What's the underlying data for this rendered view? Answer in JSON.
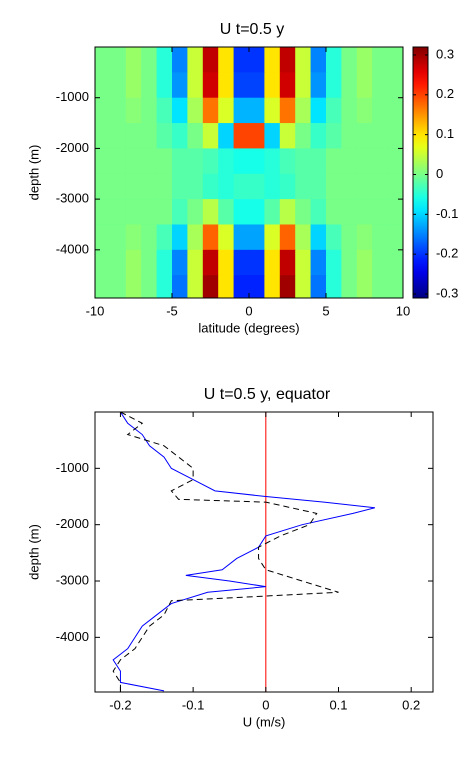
{
  "chart_data": [
    {
      "type": "heatmap",
      "title": "U  t=0.5 y",
      "xlabel": "latitude (degrees)",
      "ylabel": "depth (m)",
      "xlim": [
        -10,
        10
      ],
      "xticks": [
        -10,
        -5,
        0,
        5,
        10
      ],
      "ylim": [
        -4950,
        0
      ],
      "yticks": [
        -1000,
        -2000,
        -3000,
        -4000
      ],
      "clim": [
        -0.31,
        0.32
      ],
      "cticks": [
        0.3,
        0.2,
        0.1,
        0,
        -0.1,
        -0.2,
        -0.3
      ],
      "x": [
        -9.5,
        -8.5,
        -7.5,
        -6.5,
        -5.5,
        -4.5,
        -3.5,
        -2.5,
        -1.5,
        -0.5,
        0.5,
        1.5,
        2.5,
        3.5,
        4.5,
        5.5,
        6.5,
        7.5,
        8.5,
        9.5
      ],
      "y": [
        -250,
        -750,
        -1250,
        -1750,
        -2250,
        -2750,
        -3250,
        -3750,
        -4250,
        -4750
      ],
      "z": [
        [
          0,
          0,
          0.02,
          0,
          -0.05,
          -0.15,
          0.05,
          0.28,
          0.1,
          -0.2,
          -0.2,
          0.1,
          0.28,
          0.05,
          -0.15,
          -0.05,
          0,
          0.02,
          0,
          0
        ],
        [
          0,
          0,
          0.02,
          0,
          -0.05,
          -0.14,
          0.05,
          0.27,
          0.1,
          -0.19,
          -0.19,
          0.1,
          0.27,
          0.05,
          -0.14,
          -0.05,
          0,
          0.02,
          0,
          0
        ],
        [
          0,
          0,
          0.01,
          0,
          -0.03,
          -0.09,
          0.03,
          0.17,
          0.06,
          -0.12,
          -0.12,
          0.06,
          0.17,
          0.03,
          -0.09,
          -0.03,
          0,
          0.01,
          0,
          0
        ],
        [
          0,
          0,
          0,
          0,
          -0.02,
          -0.04,
          0,
          0.05,
          -0.1,
          0.2,
          0.2,
          -0.1,
          0.05,
          0,
          -0.04,
          -0.02,
          0,
          0,
          0,
          0
        ],
        [
          0,
          0,
          0,
          0,
          0,
          -0.02,
          -0.02,
          -0.03,
          -0.05,
          -0.06,
          -0.06,
          -0.05,
          -0.03,
          -0.02,
          -0.02,
          0,
          0,
          0,
          0,
          0
        ],
        [
          0,
          0,
          0,
          0,
          0,
          -0.02,
          -0.02,
          -0.04,
          -0.05,
          -0.04,
          -0.04,
          -0.05,
          -0.04,
          -0.02,
          -0.02,
          0,
          0,
          0,
          0,
          0
        ],
        [
          0,
          0,
          0,
          0,
          0,
          -0.03,
          0,
          0.04,
          -0.02,
          -0.06,
          -0.06,
          -0.02,
          0.04,
          0,
          -0.03,
          0,
          0,
          0,
          0,
          0
        ],
        [
          0,
          0,
          0.01,
          0,
          -0.03,
          -0.1,
          0.03,
          0.18,
          0.06,
          -0.13,
          -0.13,
          0.06,
          0.18,
          0.03,
          -0.1,
          -0.03,
          0,
          0.01,
          0,
          0
        ],
        [
          0,
          0,
          0.02,
          0,
          -0.05,
          -0.15,
          0.05,
          0.28,
          0.1,
          -0.2,
          -0.2,
          0.1,
          0.28,
          0.05,
          -0.15,
          -0.05,
          0,
          0.02,
          0,
          0
        ],
        [
          0,
          0,
          0.02,
          0,
          -0.05,
          -0.16,
          0.05,
          0.3,
          0.1,
          -0.21,
          -0.21,
          0.1,
          0.3,
          0.05,
          -0.16,
          -0.05,
          0,
          0.02,
          0,
          0
        ]
      ]
    },
    {
      "type": "line",
      "title": "U t=0.5 y, equator",
      "xlabel": "U (m/s)",
      "ylabel": "depth (m)",
      "xlim": [
        -0.235,
        0.23
      ],
      "xticks": [
        -0.2,
        -0.1,
        0,
        0.1,
        0.2
      ],
      "ylim": [
        -4970,
        0
      ],
      "yticks": [
        -1000,
        -2000,
        -3000,
        -4000
      ],
      "reference_line": {
        "x": 0,
        "color": "#ff0000"
      },
      "series": [
        {
          "color": "#0000ff",
          "dashed": false,
          "depth": [
            0,
            -200,
            -400,
            -600,
            -800,
            -1000,
            -1200,
            -1400,
            -1500,
            -1600,
            -1700,
            -1800,
            -2000,
            -2200,
            -2400,
            -2600,
            -2800,
            -2900,
            -3000,
            -3100,
            -3200,
            -3400,
            -3600,
            -3800,
            -4000,
            -4200,
            -4400,
            -4600,
            -4800,
            -4950
          ],
          "values": [
            -0.2,
            -0.19,
            -0.17,
            -0.16,
            -0.14,
            -0.13,
            -0.1,
            -0.07,
            0.0,
            0.08,
            0.15,
            0.12,
            0.05,
            0.0,
            -0.01,
            -0.04,
            -0.06,
            -0.11,
            -0.05,
            0.0,
            -0.08,
            -0.13,
            -0.15,
            -0.17,
            -0.18,
            -0.19,
            -0.21,
            -0.2,
            -0.2,
            -0.14
          ]
        },
        {
          "color": "#000000",
          "dashed": true,
          "depth": [
            0,
            -200,
            -400,
            -600,
            -800,
            -1000,
            -1200,
            -1400,
            -1550,
            -1600,
            -1800,
            -2000,
            -2200,
            -2400,
            -2600,
            -2800,
            -3000,
            -3200,
            -3300,
            -3350,
            -3600,
            -3800,
            -4000,
            -4200,
            -4400,
            -4600,
            -4800,
            -4950
          ],
          "values": [
            -0.2,
            -0.17,
            -0.19,
            -0.14,
            -0.12,
            -0.1,
            -0.1,
            -0.13,
            -0.12,
            0.0,
            0.07,
            0.06,
            0.02,
            -0.01,
            -0.01,
            0.0,
            0.05,
            0.1,
            -0.05,
            -0.13,
            -0.14,
            -0.16,
            -0.17,
            -0.18,
            -0.2,
            -0.21,
            -0.2,
            -0.2
          ]
        }
      ]
    }
  ]
}
